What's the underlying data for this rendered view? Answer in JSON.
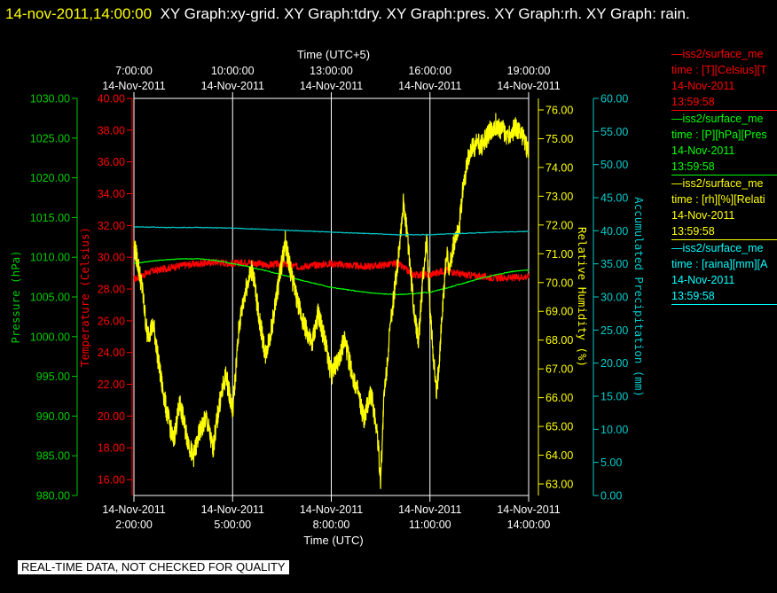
{
  "title": {
    "timestamp": "14-nov-2011,14:00:00",
    "graphs": "XY Graph:xy-grid.  XY Graph:tdry.  XY Graph:pres.  XY Graph:rh.  XY Graph: rain."
  },
  "banner": "REAL-TIME DATA, NOT CHECKED FOR QUALITY",
  "legend": [
    {
      "source": "—iss2/surface_me",
      "field": "time : [T][Celsius][T",
      "date": "14-Nov-2011",
      "time": "13:59:58",
      "color": "#ff0000"
    },
    {
      "source": "—iss2/surface_me",
      "field": "time : [P][hPa][Pres",
      "date": "14-Nov-2011",
      "time": "13:59:58",
      "color": "#00ff00"
    },
    {
      "source": "—iss2/surface_me",
      "field": "time : [rh][%][Relati",
      "date": "14-Nov-2011",
      "time": "13:59:58",
      "color": "#ffff00"
    },
    {
      "source": "—iss2/surface_me",
      "field": "time : [raina][mm][A",
      "date": "14-Nov-2011",
      "time": "13:59:58",
      "color": "#00ffff"
    }
  ],
  "chart_data": {
    "type": "line",
    "x_bottom": {
      "label": "Time (UTC)",
      "ticks": [
        {
          "date": "14-Nov-2011",
          "time": "2:00:00"
        },
        {
          "date": "14-Nov-2011",
          "time": "5:00:00"
        },
        {
          "date": "14-Nov-2011",
          "time": "8:00:00"
        },
        {
          "date": "14-Nov-2011",
          "time": "11:00:00"
        },
        {
          "date": "14-Nov-2011",
          "time": "14:00:00"
        }
      ],
      "range": [
        "2011-11-14T02:00:00Z",
        "2011-11-14T14:00:00Z"
      ]
    },
    "x_top": {
      "label": "Time (UTC+5)",
      "ticks": [
        {
          "date": "14-Nov-2011",
          "time": "7:00:00"
        },
        {
          "date": "14-Nov-2011",
          "time": "10:00:00"
        },
        {
          "date": "14-Nov-2011",
          "time": "13:00:00"
        },
        {
          "date": "14-Nov-2011",
          "time": "16:00:00"
        },
        {
          "date": "14-Nov-2011",
          "time": "19:00:00"
        }
      ]
    },
    "vertical_grid": true,
    "axes": [
      {
        "label": "Pressure (hPa)",
        "color": "#00cc00",
        "range": [
          980,
          1030
        ],
        "ticks": [
          "980.00",
          "985.00",
          "990.00",
          "995.00",
          "1000.00",
          "1005.00",
          "1010.00",
          "1015.00",
          "1020.00",
          "1025.00",
          "1030.00"
        ]
      },
      {
        "label": "Temperature (Celsius)",
        "color": "#ff0000",
        "range": [
          15,
          40
        ],
        "ticks": [
          "16.00",
          "18.00",
          "20.00",
          "22.00",
          "24.00",
          "26.00",
          "28.00",
          "30.00",
          "32.00",
          "34.00",
          "36.00",
          "38.00",
          "40.00"
        ]
      },
      {
        "label": "Relative Humidity (%)",
        "color": "#ffff00",
        "range": [
          62.6,
          76.4
        ],
        "ticks": [
          "63.00",
          "64.00",
          "65.00",
          "66.00",
          "67.00",
          "68.00",
          "69.00",
          "70.00",
          "71.00",
          "72.00",
          "73.00",
          "74.00",
          "75.00",
          "76.00"
        ]
      },
      {
        "label": "Accumulated Precipitation (mm)",
        "color": "#00cccc",
        "range": [
          0,
          60
        ],
        "ticks": [
          "0.00",
          "5.00",
          "10.00",
          "15.00",
          "20.00",
          "25.00",
          "30.00",
          "35.00",
          "40.00",
          "45.00",
          "50.00",
          "55.00",
          "60.00"
        ]
      }
    ],
    "series": [
      {
        "name": "Temperature",
        "axis": 1,
        "color": "#ff0000",
        "x_hours": [
          2.0,
          2.5,
          3.0,
          3.5,
          4.0,
          4.5,
          5.0,
          5.5,
          6.0,
          6.5,
          7.0,
          7.5,
          8.0,
          8.5,
          9.0,
          9.5,
          10.0,
          10.5,
          11.0,
          11.5,
          12.0,
          12.5,
          13.0,
          13.5,
          14.0
        ],
        "y": [
          28.6,
          29.1,
          29.3,
          29.5,
          29.6,
          29.7,
          29.6,
          29.7,
          29.5,
          29.6,
          29.4,
          29.5,
          29.6,
          29.5,
          29.4,
          29.5,
          29.6,
          28.9,
          28.9,
          29.2,
          28.9,
          28.8,
          28.7,
          28.7,
          28.8
        ]
      },
      {
        "name": "Pressure",
        "axis": 0,
        "color": "#00ff00",
        "x_hours": [
          2.0,
          2.5,
          3.0,
          3.5,
          4.0,
          4.5,
          5.0,
          5.5,
          6.0,
          6.5,
          7.0,
          7.5,
          8.0,
          8.5,
          9.0,
          9.5,
          10.0,
          10.5,
          11.0,
          11.5,
          12.0,
          12.5,
          13.0,
          13.5,
          14.0
        ],
        "y": [
          1009.2,
          1009.5,
          1009.7,
          1009.8,
          1009.8,
          1009.6,
          1009.2,
          1008.8,
          1008.3,
          1007.8,
          1007.2,
          1006.7,
          1006.2,
          1005.9,
          1005.6,
          1005.4,
          1005.3,
          1005.4,
          1005.6,
          1006.1,
          1006.7,
          1007.3,
          1007.8,
          1008.2,
          1008.4
        ]
      },
      {
        "name": "Relative Humidity",
        "axis": 2,
        "color": "#ffff00",
        "x_hours": [
          2.0,
          2.1,
          2.25,
          2.4,
          2.6,
          2.8,
          3.0,
          3.2,
          3.4,
          3.6,
          3.8,
          4.0,
          4.2,
          4.4,
          4.6,
          4.8,
          5.0,
          5.2,
          5.4,
          5.6,
          5.8,
          6.0,
          6.2,
          6.4,
          6.6,
          6.8,
          7.0,
          7.2,
          7.4,
          7.6,
          7.8,
          8.0,
          8.2,
          8.4,
          8.6,
          8.8,
          9.0,
          9.2,
          9.4,
          9.5,
          9.6,
          9.8,
          10.0,
          10.2,
          10.35,
          10.5,
          10.65,
          10.8,
          10.9,
          11.0,
          11.1,
          11.2,
          11.35,
          11.5,
          11.6,
          11.75,
          11.9,
          12.0,
          12.2,
          12.4,
          12.6,
          12.8,
          13.0,
          13.2,
          13.4,
          13.6,
          13.8,
          14.0
        ],
        "y": [
          71.3,
          70.8,
          69.8,
          68.2,
          68.5,
          66.8,
          65.5,
          64.5,
          65.8,
          64.7,
          63.9,
          64.8,
          65.3,
          64.2,
          65.8,
          66.8,
          65.5,
          68.5,
          69.8,
          70.5,
          68.8,
          67.5,
          68.5,
          70.0,
          71.4,
          70.2,
          69.2,
          68.5,
          67.8,
          68.9,
          68.0,
          66.8,
          67.3,
          68.0,
          67.0,
          66.2,
          65.2,
          66.2,
          64.8,
          63.1,
          66.0,
          68.5,
          70.5,
          72.8,
          71.2,
          69.2,
          68.0,
          70.3,
          71.5,
          69.0,
          67.5,
          66.0,
          68.5,
          71.0,
          70.5,
          71.5,
          72.0,
          73.3,
          74.5,
          74.8,
          74.8,
          75.2,
          75.5,
          75.3,
          75.1,
          75.4,
          75.1,
          74.5
        ]
      },
      {
        "name": "Accumulated Precipitation",
        "axis": 3,
        "color": "#00cccc",
        "x_hours": [
          2.0,
          3.0,
          4.0,
          5.0,
          6.0,
          7.0,
          8.0,
          9.0,
          10.0,
          11.0,
          12.0,
          13.0,
          14.0
        ],
        "y": [
          40.6,
          40.5,
          40.5,
          40.4,
          40.2,
          40.0,
          39.8,
          39.6,
          39.4,
          39.4,
          39.6,
          39.8,
          39.9
        ]
      }
    ]
  }
}
